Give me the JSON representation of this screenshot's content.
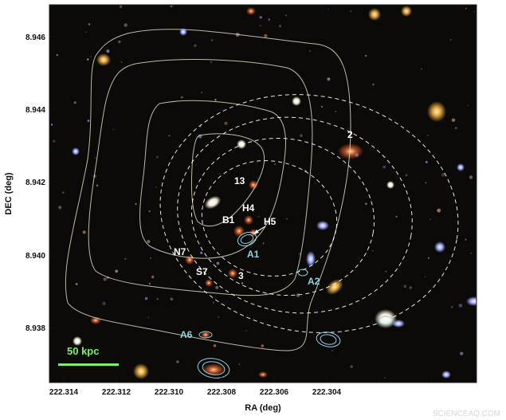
{
  "axes": {
    "xlabel": "RA (deg)",
    "ylabel": "DEC (deg)",
    "xticks": [
      "222.314",
      "222.312",
      "222.310",
      "222.308",
      "222.306",
      "222.304"
    ],
    "yticks": [
      "8.946",
      "8.944",
      "8.942",
      "8.940",
      "8.938"
    ]
  },
  "labels": {
    "white": [
      "2",
      "13",
      "H4",
      "B1",
      "H5",
      "N7",
      "S7",
      "3"
    ],
    "cyan": [
      "A1",
      "A2",
      "A6"
    ]
  },
  "scale_bar": {
    "label": "50 kpc",
    "color": "#7cf06a"
  },
  "watermark": "SCIENCEAQ.COM",
  "colors": {
    "image_background": "#0b0a08",
    "solid_contours": "#d8dcc0",
    "dashed_contours": "#ffffff",
    "arc_contours": "#8fd3e6"
  }
}
